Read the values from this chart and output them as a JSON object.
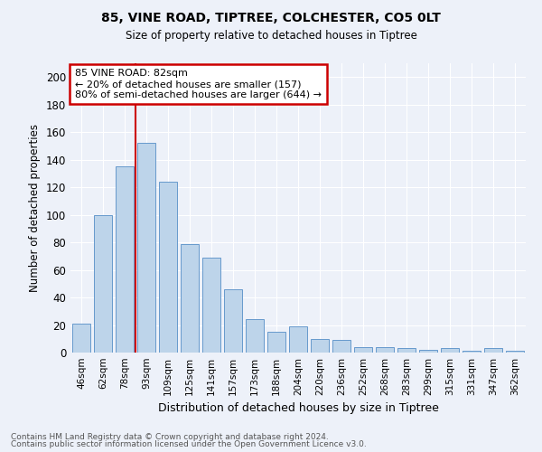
{
  "title1": "85, VINE ROAD, TIPTREE, COLCHESTER, CO5 0LT",
  "title2": "Size of property relative to detached houses in Tiptree",
  "xlabel": "Distribution of detached houses by size in Tiptree",
  "ylabel": "Number of detached properties",
  "categories": [
    "46sqm",
    "62sqm",
    "78sqm",
    "93sqm",
    "109sqm",
    "125sqm",
    "141sqm",
    "157sqm",
    "173sqm",
    "188sqm",
    "204sqm",
    "220sqm",
    "236sqm",
    "252sqm",
    "268sqm",
    "283sqm",
    "299sqm",
    "315sqm",
    "331sqm",
    "347sqm",
    "362sqm"
  ],
  "values": [
    21,
    100,
    135,
    152,
    124,
    79,
    69,
    46,
    24,
    15,
    19,
    10,
    9,
    4,
    4,
    3,
    2,
    3,
    1,
    3,
    1
  ],
  "bar_color": "#bdd4ea",
  "bar_edge_color": "#6699cc",
  "vline_x": 2.5,
  "vline_color": "#cc0000",
  "annotation_text": "85 VINE ROAD: 82sqm\n← 20% of detached houses are smaller (157)\n80% of semi-detached houses are larger (644) →",
  "annotation_box_color": "#ffffff",
  "annotation_box_edge_color": "#cc0000",
  "ylim": [
    0,
    210
  ],
  "yticks": [
    0,
    20,
    40,
    60,
    80,
    100,
    120,
    140,
    160,
    180,
    200
  ],
  "footnote1": "Contains HM Land Registry data © Crown copyright and database right 2024.",
  "footnote2": "Contains public sector information licensed under the Open Government Licence v3.0.",
  "bg_color": "#edf1f9",
  "grid_color": "#ffffff"
}
